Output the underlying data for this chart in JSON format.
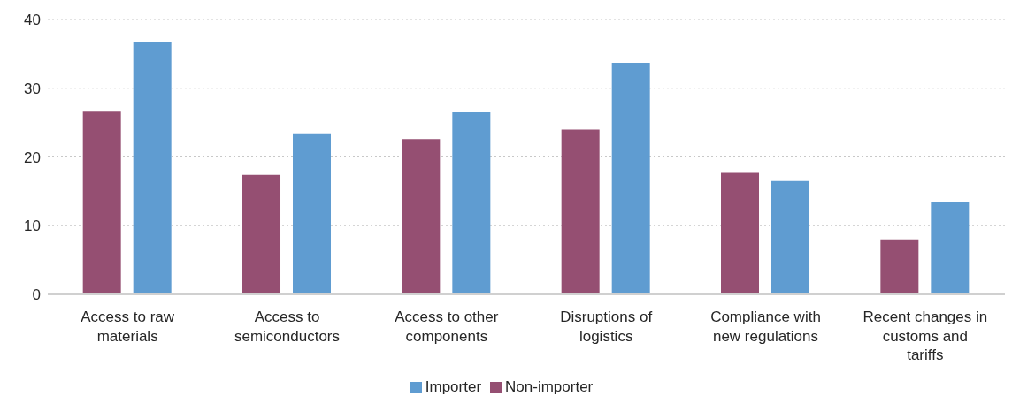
{
  "chart_data": {
    "type": "bar",
    "categories": [
      "Access to raw materials",
      "Access to semiconductors",
      "Access to other components",
      "Disruptions of logistics",
      "Compliance with new regulations",
      "Recent changes in customs and tariffs"
    ],
    "series": [
      {
        "name": "Non-importer",
        "color": "#954f72",
        "values": [
          26.6,
          17.4,
          22.6,
          24.0,
          17.7,
          8.0
        ]
      },
      {
        "name": "Importer",
        "color": "#5f9cd1",
        "values": [
          36.8,
          23.3,
          26.5,
          33.7,
          16.5,
          13.4
        ]
      }
    ],
    "ylim": [
      0,
      40
    ],
    "yticks": [
      0,
      10,
      20,
      30,
      40
    ],
    "grid": "y",
    "legend": "bottom"
  }
}
